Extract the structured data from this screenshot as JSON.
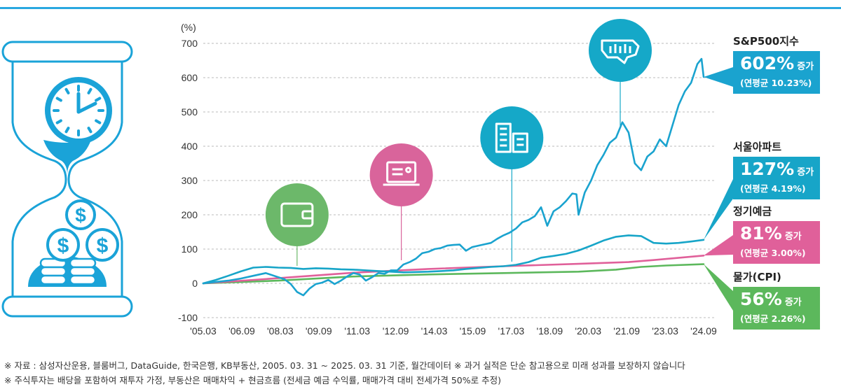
{
  "chart_data": {
    "type": "line",
    "y_unit": "(%)",
    "ylim": [
      -100,
      700
    ],
    "y_ticks": [
      700,
      600,
      500,
      400,
      300,
      200,
      100,
      0,
      -100
    ],
    "x_ticks": [
      "'05.03",
      "'06.09",
      "'08.03",
      "'09.09",
      "'11.03",
      "'12.09",
      "'14.03",
      "'15.09",
      "'17.03",
      "'18.09",
      "'20.03",
      "'21.09",
      "'23.03",
      "'24.09"
    ],
    "x_range": [
      "2005-03",
      "2025-03"
    ],
    "grid": "horizontal dashed",
    "series": [
      {
        "name": "S&P500지수",
        "color": "#1aa3cf",
        "points": [
          [
            "2005-03",
            0
          ],
          [
            "2005-09",
            4
          ],
          [
            "2006-03",
            8
          ],
          [
            "2006-09",
            14
          ],
          [
            "2007-03",
            22
          ],
          [
            "2007-09",
            30
          ],
          [
            "2008-03",
            18
          ],
          [
            "2008-06",
            12
          ],
          [
            "2008-09",
            -2
          ],
          [
            "2008-12",
            -25
          ],
          [
            "2009-03",
            -35
          ],
          [
            "2009-06",
            -15
          ],
          [
            "2009-09",
            -2
          ],
          [
            "2009-12",
            2
          ],
          [
            "2010-03",
            10
          ],
          [
            "2010-06",
            -2
          ],
          [
            "2010-09",
            8
          ],
          [
            "2010-12",
            20
          ],
          [
            "2011-03",
            30
          ],
          [
            "2011-06",
            26
          ],
          [
            "2011-09",
            8
          ],
          [
            "2011-12",
            18
          ],
          [
            "2012-03",
            30
          ],
          [
            "2012-06",
            28
          ],
          [
            "2012-09",
            38
          ],
          [
            "2012-12",
            38
          ],
          [
            "2013-03",
            55
          ],
          [
            "2013-06",
            62
          ],
          [
            "2013-09",
            72
          ],
          [
            "2013-12",
            88
          ],
          [
            "2014-03",
            92
          ],
          [
            "2014-06",
            100
          ],
          [
            "2014-09",
            103
          ],
          [
            "2014-12",
            110
          ],
          [
            "2015-03",
            112
          ],
          [
            "2015-06",
            113
          ],
          [
            "2015-09",
            95
          ],
          [
            "2015-12",
            106
          ],
          [
            "2016-03",
            110
          ],
          [
            "2016-06",
            114
          ],
          [
            "2016-09",
            118
          ],
          [
            "2016-12",
            130
          ],
          [
            "2017-03",
            140
          ],
          [
            "2017-06",
            148
          ],
          [
            "2017-09",
            160
          ],
          [
            "2017-12",
            178
          ],
          [
            "2018-03",
            185
          ],
          [
            "2018-06",
            196
          ],
          [
            "2018-09",
            222
          ],
          [
            "2018-12",
            168
          ],
          [
            "2019-03",
            210
          ],
          [
            "2019-06",
            222
          ],
          [
            "2019-09",
            240
          ],
          [
            "2019-12",
            262
          ],
          [
            "2020-02",
            260
          ],
          [
            "2020-03",
            200
          ],
          [
            "2020-06",
            265
          ],
          [
            "2020-09",
            300
          ],
          [
            "2020-12",
            345
          ],
          [
            "2021-03",
            375
          ],
          [
            "2021-06",
            410
          ],
          [
            "2021-09",
            425
          ],
          [
            "2021-12",
            470
          ],
          [
            "2022-03",
            440
          ],
          [
            "2022-06",
            350
          ],
          [
            "2022-09",
            330
          ],
          [
            "2022-12",
            370
          ],
          [
            "2023-03",
            385
          ],
          [
            "2023-06",
            420
          ],
          [
            "2023-09",
            400
          ],
          [
            "2023-12",
            460
          ],
          [
            "2024-03",
            520
          ],
          [
            "2024-06",
            560
          ],
          [
            "2024-09",
            585
          ],
          [
            "2024-12",
            640
          ],
          [
            "2025-02",
            655
          ],
          [
            "2025-03",
            602
          ]
        ]
      },
      {
        "name": "서울아파트",
        "color": "#17a5c8",
        "points": [
          [
            "2005-03",
            0
          ],
          [
            "2005-09",
            10
          ],
          [
            "2006-03",
            22
          ],
          [
            "2006-09",
            35
          ],
          [
            "2007-03",
            46
          ],
          [
            "2007-09",
            48
          ],
          [
            "2008-03",
            46
          ],
          [
            "2008-09",
            45
          ],
          [
            "2009-03",
            42
          ],
          [
            "2009-09",
            44
          ],
          [
            "2010-03",
            43
          ],
          [
            "2010-09",
            41
          ],
          [
            "2011-03",
            40
          ],
          [
            "2011-09",
            38
          ],
          [
            "2012-03",
            36
          ],
          [
            "2012-09",
            34
          ],
          [
            "2013-03",
            32
          ],
          [
            "2013-09",
            33
          ],
          [
            "2014-03",
            34
          ],
          [
            "2014-09",
            36
          ],
          [
            "2015-03",
            38
          ],
          [
            "2015-09",
            42
          ],
          [
            "2016-03",
            45
          ],
          [
            "2016-09",
            48
          ],
          [
            "2017-03",
            50
          ],
          [
            "2017-09",
            54
          ],
          [
            "2018-03",
            62
          ],
          [
            "2018-09",
            75
          ],
          [
            "2019-03",
            80
          ],
          [
            "2019-09",
            86
          ],
          [
            "2020-03",
            96
          ],
          [
            "2020-09",
            110
          ],
          [
            "2021-03",
            125
          ],
          [
            "2021-09",
            136
          ],
          [
            "2022-03",
            140
          ],
          [
            "2022-09",
            138
          ],
          [
            "2023-03",
            118
          ],
          [
            "2023-09",
            116
          ],
          [
            "2024-03",
            118
          ],
          [
            "2024-09",
            122
          ],
          [
            "2025-03",
            127
          ]
        ]
      },
      {
        "name": "정기예금",
        "color": "#e0609a",
        "points": [
          [
            "2005-03",
            0
          ],
          [
            "2008-03",
            15
          ],
          [
            "2011-03",
            31
          ],
          [
            "2014-03",
            42
          ],
          [
            "2017-03",
            50
          ],
          [
            "2020-03",
            57
          ],
          [
            "2022-03",
            62
          ],
          [
            "2023-03",
            68
          ],
          [
            "2025-03",
            81
          ]
        ]
      },
      {
        "name": "물가(CPI)",
        "color": "#5cb85c",
        "points": [
          [
            "2005-03",
            0
          ],
          [
            "2008-03",
            8
          ],
          [
            "2011-03",
            20
          ],
          [
            "2014-03",
            26
          ],
          [
            "2017-03",
            30
          ],
          [
            "2020-03",
            34
          ],
          [
            "2021-09",
            40
          ],
          [
            "2022-09",
            48
          ],
          [
            "2023-09",
            52
          ],
          [
            "2025-03",
            56
          ]
        ]
      }
    ]
  },
  "callouts": {
    "sp500": {
      "name": "S&P500지수",
      "pct": "602%",
      "inc": "증가",
      "annual": "(연평균 10.23%)",
      "color": "#1aa3cf"
    },
    "seoul": {
      "name": "서울아파트",
      "pct": "127%",
      "inc": "증가",
      "annual": "(연평균 4.19%)",
      "color": "#17a5c8"
    },
    "deposit": {
      "name": "정기예금",
      "pct": "81%",
      "inc": "증가",
      "annual": "(연평균 3.00%)",
      "color": "#e0609a"
    },
    "cpi": {
      "name": "물가(CPI)",
      "pct": "56%",
      "inc": "증가",
      "annual": "(연평균 2.26%)",
      "color": "#5cb85c"
    }
  },
  "icons": [
    {
      "name": "wallet-icon",
      "color": "#6cb86a",
      "anchor": "2008-12"
    },
    {
      "name": "laptop-icon",
      "color": "#d9649b",
      "anchor": "2013-02"
    },
    {
      "name": "buildings-icon",
      "color": "#15a8c8",
      "anchor": "2017-07"
    },
    {
      "name": "usa-map-chart-icon",
      "color": "#15a8c8",
      "anchor": "2021-11"
    }
  ],
  "hourglass": {
    "name": "hourglass-clock-money-icon",
    "color": "#1aa3d8"
  },
  "footnotes": [
    "※ 자료 : 삼성자산운용, 블룸버그, DataGuide, 한국은행, KB부동산, 2005. 03. 31 ~ 2025. 03. 31 기준, 월간데이터  ※ 과거 실적은 단순 참고용으로 미래 성과를 보장하지 않습니다",
    "※ 주식투자는 배당을 포함하여 재투자 가정, 부동산은 매매차익 + 현금흐름 (전세금 예금 수익률, 매매가격 대비 전세가격 50%로 추정)"
  ]
}
